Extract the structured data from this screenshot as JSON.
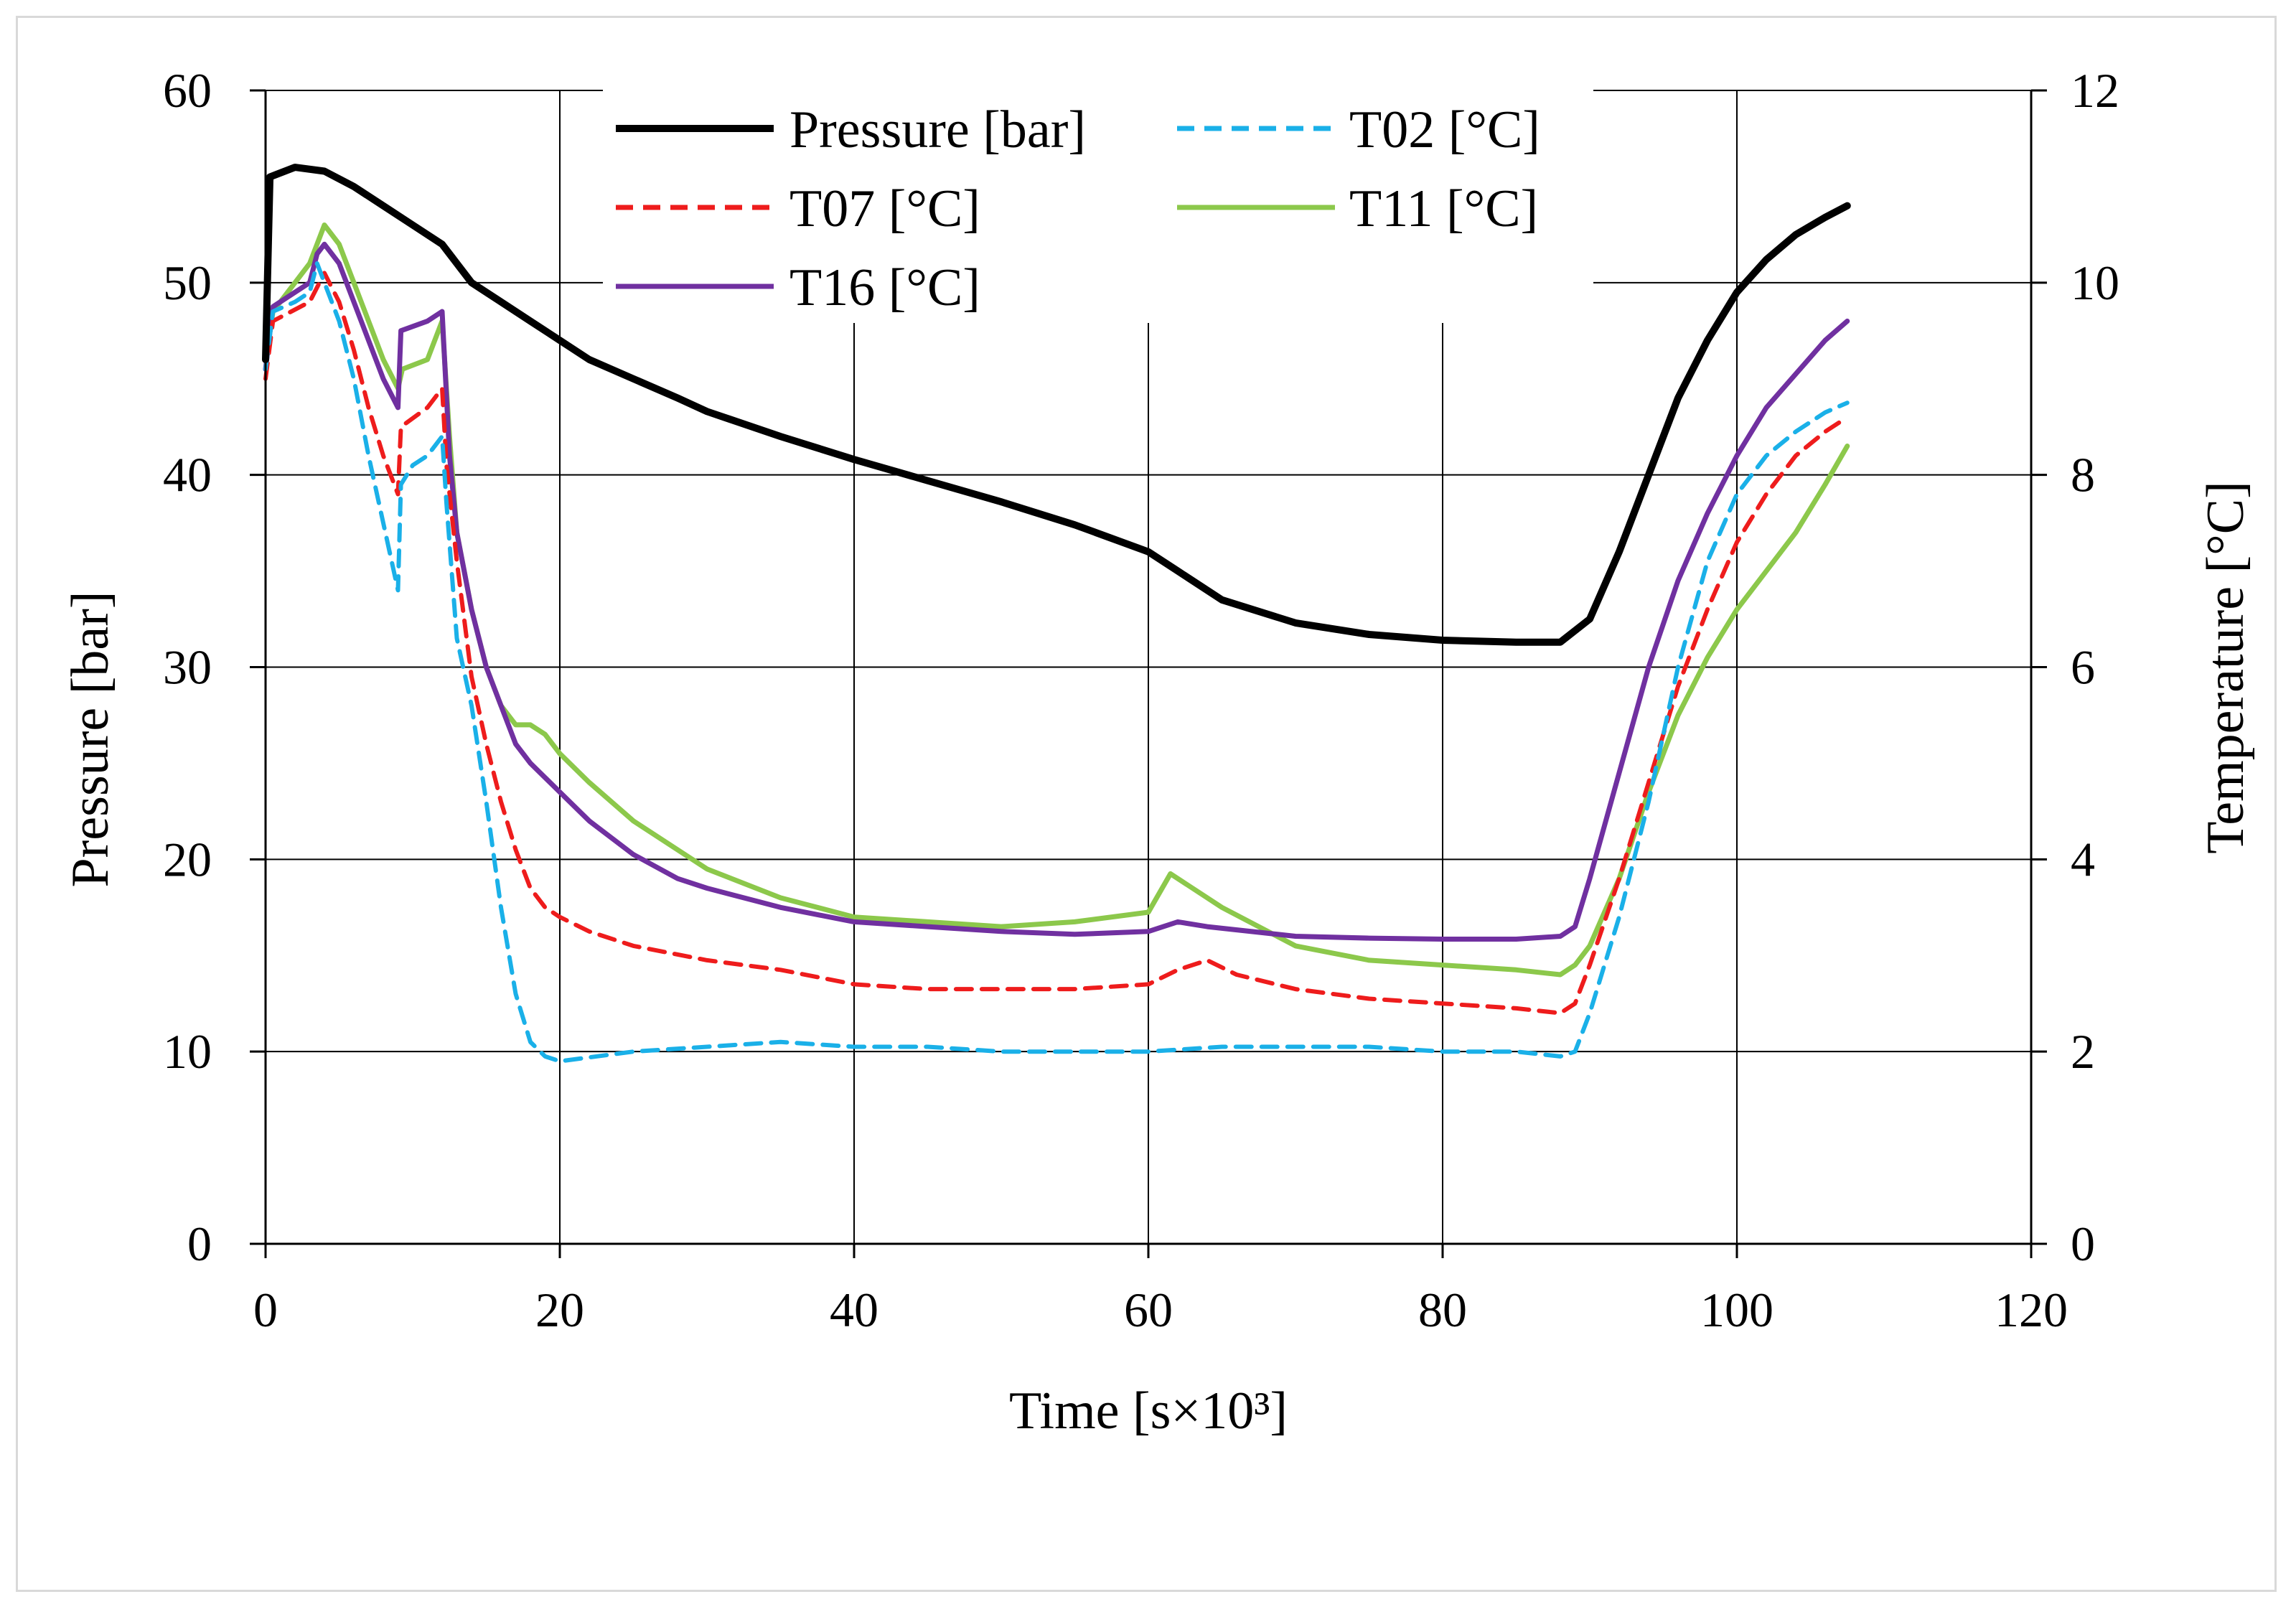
{
  "chart_data": {
    "type": "line",
    "title": "",
    "xlabel": "Time [s×10³]",
    "ylabel": "Pressure [bar]",
    "y2label": "Temperature [°C]",
    "xlim": [
      0,
      120
    ],
    "ylim": [
      0,
      60
    ],
    "y2lim": [
      0,
      12
    ],
    "xticks": [
      "0",
      "20",
      "40",
      "60",
      "80",
      "100",
      "120"
    ],
    "yticks": [
      "0",
      "10",
      "20",
      "30",
      "40",
      "50",
      "60"
    ],
    "y2ticks": [
      "0",
      "2",
      "4",
      "6",
      "8",
      "10",
      "12"
    ],
    "grid": true,
    "legend_position": "top-center",
    "series": [
      {
        "name": "Pressure [bar]",
        "axis": "left",
        "color": "#000000",
        "dash": "solid",
        "points": [
          [
            0,
            46
          ],
          [
            0.3,
            55.5
          ],
          [
            2,
            56
          ],
          [
            4,
            55.8
          ],
          [
            6,
            55
          ],
          [
            8,
            54
          ],
          [
            10,
            53
          ],
          [
            12,
            52
          ],
          [
            14,
            50
          ],
          [
            16,
            49
          ],
          [
            18,
            48
          ],
          [
            20,
            47
          ],
          [
            22,
            46
          ],
          [
            25,
            45
          ],
          [
            28,
            44
          ],
          [
            30,
            43.3
          ],
          [
            35,
            42
          ],
          [
            40,
            40.8
          ],
          [
            45,
            39.7
          ],
          [
            50,
            38.6
          ],
          [
            55,
            37.4
          ],
          [
            60,
            36
          ],
          [
            62,
            35
          ],
          [
            65,
            33.5
          ],
          [
            70,
            32.3
          ],
          [
            75,
            31.7
          ],
          [
            80,
            31.4
          ],
          [
            85,
            31.3
          ],
          [
            88,
            31.3
          ],
          [
            90,
            32.5
          ],
          [
            92,
            36
          ],
          [
            94,
            40
          ],
          [
            96,
            44
          ],
          [
            98,
            47
          ],
          [
            100,
            49.5
          ],
          [
            102,
            51.2
          ],
          [
            104,
            52.5
          ],
          [
            106,
            53.4
          ],
          [
            107.5,
            54
          ]
        ]
      },
      {
        "name": "T02 [°C]",
        "axis": "right",
        "color": "#1ab0e8",
        "dash": "dashed",
        "points": [
          [
            0,
            9.1
          ],
          [
            0.5,
            9.7
          ],
          [
            2,
            9.8
          ],
          [
            3,
            9.9
          ],
          [
            3.5,
            10.2
          ],
          [
            4,
            10
          ],
          [
            5,
            9.6
          ],
          [
            6,
            9
          ],
          [
            7,
            8.2
          ],
          [
            8,
            7.5
          ],
          [
            9,
            6.8
          ],
          [
            9.2,
            7.9
          ],
          [
            10,
            8.1
          ],
          [
            11,
            8.2
          ],
          [
            12,
            8.4
          ],
          [
            12.3,
            7.7
          ],
          [
            13,
            6.3
          ],
          [
            14,
            5.6
          ],
          [
            15,
            4.6
          ],
          [
            16,
            3.5
          ],
          [
            17,
            2.6
          ],
          [
            18,
            2.1
          ],
          [
            19,
            1.95
          ],
          [
            20,
            1.9
          ],
          [
            25,
            2
          ],
          [
            30,
            2.05
          ],
          [
            35,
            2.1
          ],
          [
            40,
            2.05
          ],
          [
            45,
            2.05
          ],
          [
            50,
            2
          ],
          [
            55,
            2
          ],
          [
            60,
            2
          ],
          [
            65,
            2.05
          ],
          [
            70,
            2.05
          ],
          [
            75,
            2.05
          ],
          [
            80,
            2
          ],
          [
            85,
            2
          ],
          [
            88,
            1.95
          ],
          [
            89,
            2
          ],
          [
            90,
            2.4
          ],
          [
            92,
            3.4
          ],
          [
            94,
            4.6
          ],
          [
            96,
            6
          ],
          [
            98,
            7.1
          ],
          [
            100,
            7.8
          ],
          [
            102,
            8.2
          ],
          [
            104,
            8.45
          ],
          [
            106,
            8.65
          ],
          [
            107.5,
            8.75
          ]
        ]
      },
      {
        "name": "T07 [°C]",
        "axis": "right",
        "color": "#ee1c1c",
        "dash": "dashed",
        "points": [
          [
            0,
            9
          ],
          [
            0.5,
            9.6
          ],
          [
            3,
            9.8
          ],
          [
            4,
            10.1
          ],
          [
            5,
            9.8
          ],
          [
            6,
            9.3
          ],
          [
            7,
            8.7
          ],
          [
            8,
            8.2
          ],
          [
            9,
            7.8
          ],
          [
            9.2,
            8.5
          ],
          [
            11,
            8.7
          ],
          [
            12,
            8.9
          ],
          [
            12.3,
            8.1
          ],
          [
            13,
            7.1
          ],
          [
            14,
            5.9
          ],
          [
            15,
            5.2
          ],
          [
            16,
            4.6
          ],
          [
            17,
            4.1
          ],
          [
            18,
            3.7
          ],
          [
            19,
            3.5
          ],
          [
            20,
            3.4
          ],
          [
            22,
            3.25
          ],
          [
            25,
            3.1
          ],
          [
            30,
            2.95
          ],
          [
            35,
            2.85
          ],
          [
            40,
            2.7
          ],
          [
            45,
            2.65
          ],
          [
            50,
            2.65
          ],
          [
            55,
            2.65
          ],
          [
            60,
            2.7
          ],
          [
            62,
            2.85
          ],
          [
            64,
            2.95
          ],
          [
            66,
            2.8
          ],
          [
            70,
            2.65
          ],
          [
            75,
            2.55
          ],
          [
            80,
            2.5
          ],
          [
            85,
            2.45
          ],
          [
            88,
            2.4
          ],
          [
            89,
            2.5
          ],
          [
            90,
            2.9
          ],
          [
            92,
            3.8
          ],
          [
            94,
            4.8
          ],
          [
            96,
            5.8
          ],
          [
            98,
            6.6
          ],
          [
            100,
            7.3
          ],
          [
            102,
            7.8
          ],
          [
            104,
            8.2
          ],
          [
            106,
            8.45
          ],
          [
            107.5,
            8.6
          ]
        ]
      },
      {
        "name": "T11 [°C]",
        "axis": "right",
        "color": "#8cc84b",
        "dash": "solid",
        "points": [
          [
            0,
            9.2
          ],
          [
            0.5,
            9.7
          ],
          [
            3,
            10.2
          ],
          [
            4,
            10.6
          ],
          [
            5,
            10.4
          ],
          [
            6,
            10
          ],
          [
            7,
            9.6
          ],
          [
            8,
            9.2
          ],
          [
            9,
            8.9
          ],
          [
            9.3,
            9.1
          ],
          [
            11,
            9.2
          ],
          [
            12,
            9.6
          ],
          [
            12.5,
            8.4
          ],
          [
            13,
            7.4
          ],
          [
            14,
            6.6
          ],
          [
            15,
            6
          ],
          [
            16,
            5.6
          ],
          [
            17,
            5.4
          ],
          [
            18,
            5.4
          ],
          [
            19,
            5.3
          ],
          [
            20,
            5.1
          ],
          [
            22,
            4.8
          ],
          [
            25,
            4.4
          ],
          [
            28,
            4.1
          ],
          [
            30,
            3.9
          ],
          [
            35,
            3.6
          ],
          [
            40,
            3.4
          ],
          [
            45,
            3.35
          ],
          [
            50,
            3.3
          ],
          [
            55,
            3.35
          ],
          [
            60,
            3.45
          ],
          [
            61.5,
            3.85
          ],
          [
            63,
            3.7
          ],
          [
            65,
            3.5
          ],
          [
            70,
            3.1
          ],
          [
            75,
            2.95
          ],
          [
            80,
            2.9
          ],
          [
            85,
            2.85
          ],
          [
            88,
            2.8
          ],
          [
            89,
            2.9
          ],
          [
            90,
            3.1
          ],
          [
            92,
            3.8
          ],
          [
            94,
            4.7
          ],
          [
            96,
            5.5
          ],
          [
            98,
            6.1
          ],
          [
            100,
            6.6
          ],
          [
            102,
            7
          ],
          [
            104,
            7.4
          ],
          [
            106,
            7.9
          ],
          [
            107.5,
            8.3
          ]
        ]
      },
      {
        "name": "T16 [°C]",
        "axis": "right",
        "color": "#7030a0",
        "dash": "solid",
        "points": [
          [
            0,
            9.1
          ],
          [
            0.5,
            9.75
          ],
          [
            3,
            10
          ],
          [
            3.5,
            10.3
          ],
          [
            4,
            10.4
          ],
          [
            5,
            10.2
          ],
          [
            6,
            9.8
          ],
          [
            7,
            9.4
          ],
          [
            8,
            9
          ],
          [
            9,
            8.7
          ],
          [
            9.2,
            9.5
          ],
          [
            11,
            9.6
          ],
          [
            12,
            9.7
          ],
          [
            12.5,
            8.2
          ],
          [
            13,
            7.4
          ],
          [
            14,
            6.6
          ],
          [
            15,
            6
          ],
          [
            16,
            5.6
          ],
          [
            17,
            5.2
          ],
          [
            18,
            5
          ],
          [
            20,
            4.7
          ],
          [
            22,
            4.4
          ],
          [
            25,
            4.05
          ],
          [
            28,
            3.8
          ],
          [
            30,
            3.7
          ],
          [
            35,
            3.5
          ],
          [
            40,
            3.35
          ],
          [
            45,
            3.3
          ],
          [
            50,
            3.25
          ],
          [
            55,
            3.22
          ],
          [
            60,
            3.25
          ],
          [
            62,
            3.35
          ],
          [
            64,
            3.3
          ],
          [
            70,
            3.2
          ],
          [
            75,
            3.18
          ],
          [
            80,
            3.17
          ],
          [
            85,
            3.17
          ],
          [
            88,
            3.2
          ],
          [
            89,
            3.3
          ],
          [
            90,
            3.8
          ],
          [
            92,
            4.9
          ],
          [
            94,
            6
          ],
          [
            96,
            6.9
          ],
          [
            98,
            7.6
          ],
          [
            100,
            8.2
          ],
          [
            102,
            8.7
          ],
          [
            104,
            9.05
          ],
          [
            106,
            9.4
          ],
          [
            107.5,
            9.6
          ]
        ]
      }
    ]
  }
}
